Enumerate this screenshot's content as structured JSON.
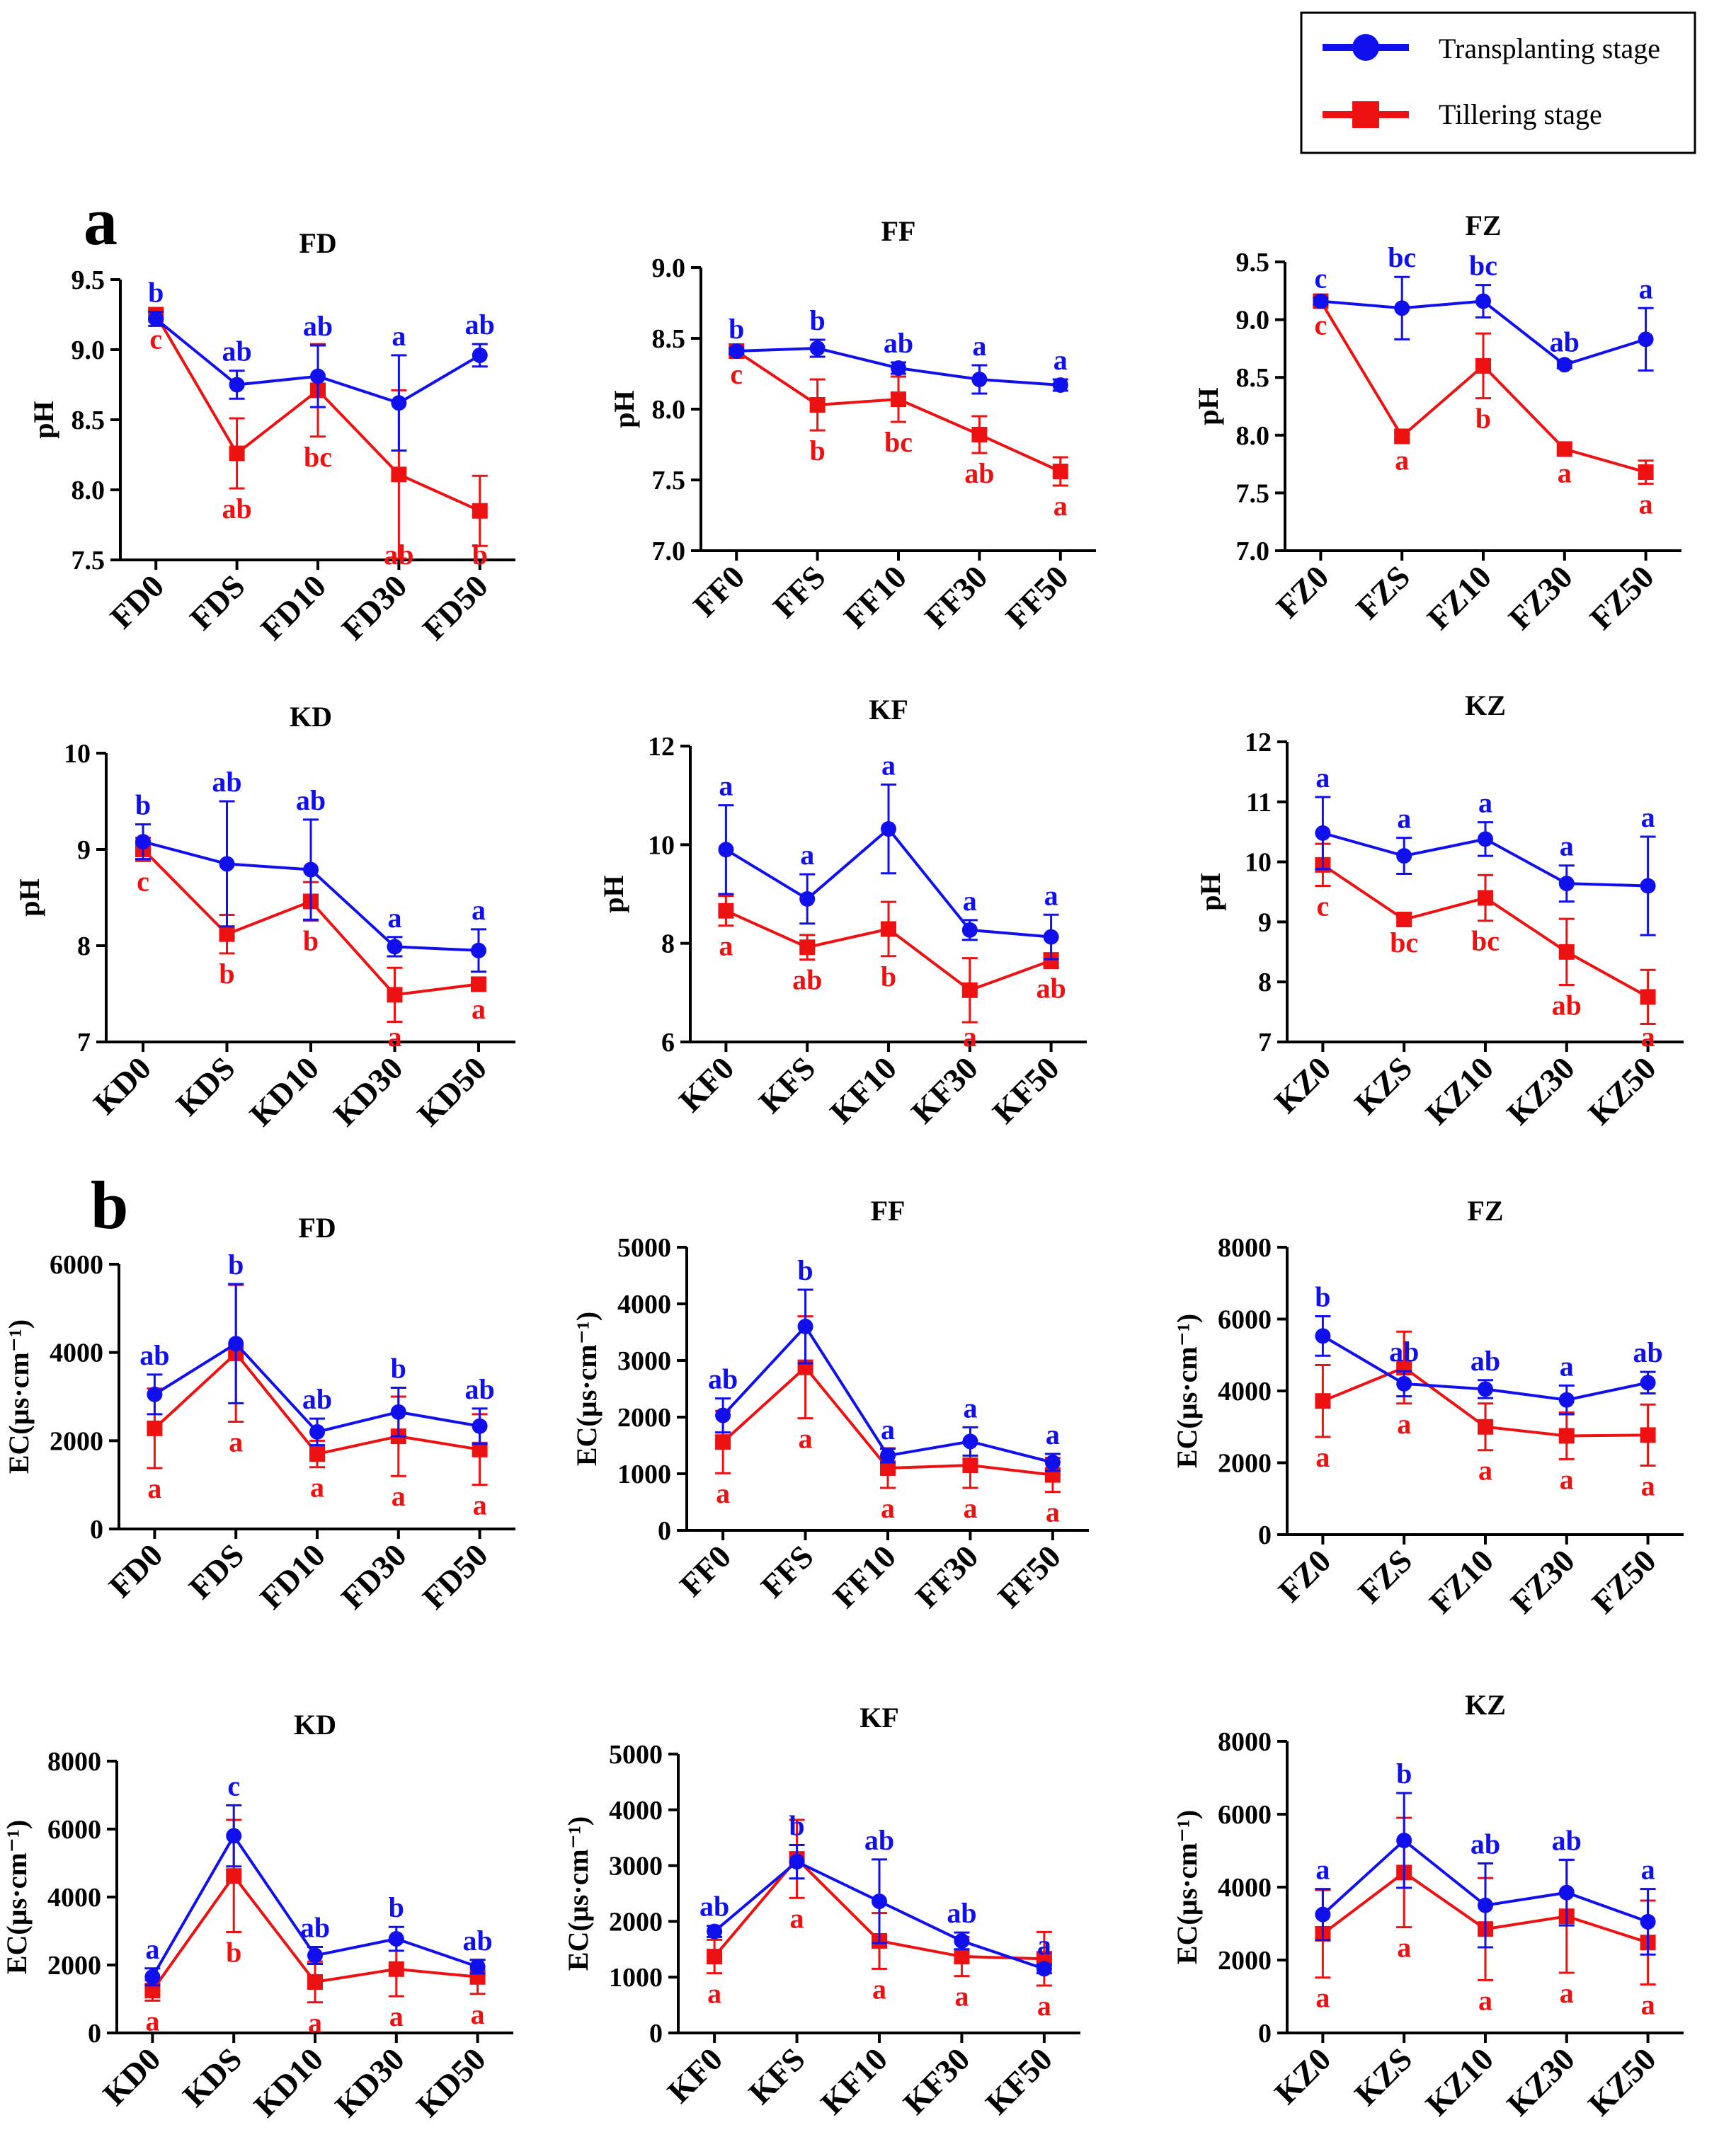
{
  "colors": {
    "transplanting": "#1010ee",
    "tillering": "#ee1111",
    "axis": "#000000"
  },
  "legend": {
    "items": [
      {
        "label": "Transplanting stage",
        "series": "transplanting",
        "marker": "circle"
      },
      {
        "label": "Tillering stage",
        "series": "tillering",
        "marker": "square"
      }
    ]
  },
  "panels": [
    {
      "id": "a",
      "label": "a"
    },
    {
      "id": "b",
      "label": "b"
    }
  ],
  "chart_data": [
    {
      "type": "line",
      "panel": "a",
      "title": "FD",
      "ylabel": "pH",
      "categories": [
        "FD0",
        "FDS",
        "FD10",
        "FD30",
        "FD50"
      ],
      "ylim": [
        7.5,
        9.5
      ],
      "yticks": [
        "7.5",
        "8.0",
        "8.5",
        "9.0",
        "9.5"
      ],
      "series": [
        {
          "name": "Transplanting stage",
          "values": [
            9.22,
            8.75,
            8.81,
            8.62,
            8.96
          ],
          "errors": [
            0.05,
            0.1,
            0.22,
            0.34,
            0.08
          ],
          "letters": [
            "b",
            "ab",
            "ab",
            "a",
            "ab"
          ]
        },
        {
          "name": "Tillering stage",
          "values": [
            9.25,
            8.26,
            8.71,
            8.11,
            7.85
          ],
          "errors": [
            0.03,
            0.25,
            0.33,
            0.6,
            0.25
          ],
          "letters": [
            "c",
            "ab",
            "bc",
            "ab",
            "b"
          ]
        }
      ]
    },
    {
      "type": "line",
      "panel": "a",
      "title": "FF",
      "ylabel": "pH",
      "categories": [
        "FF0",
        "FFS",
        "FF10",
        "FF30",
        "FF50"
      ],
      "ylim": [
        7.0,
        9.0
      ],
      "yticks": [
        "7.0",
        "7.5",
        "8.0",
        "8.5",
        "9.0"
      ],
      "series": [
        {
          "name": "Transplanting stage",
          "values": [
            8.41,
            8.43,
            8.29,
            8.21,
            8.17
          ],
          "errors": [
            0.02,
            0.06,
            0.04,
            0.1,
            0.04
          ],
          "letters": [
            "b",
            "b",
            "ab",
            "a",
            "a"
          ]
        },
        {
          "name": "Tillering stage",
          "values": [
            8.41,
            8.03,
            8.07,
            7.82,
            7.56
          ],
          "errors": [
            0.02,
            0.18,
            0.16,
            0.13,
            0.1
          ],
          "letters": [
            "c",
            "b",
            "bc",
            "ab",
            "a"
          ]
        }
      ]
    },
    {
      "type": "line",
      "panel": "a",
      "title": "FZ",
      "ylabel": "pH",
      "categories": [
        "FZ0",
        "FZS",
        "FZ10",
        "FZ30",
        "FZ50"
      ],
      "ylim": [
        7.0,
        9.5
      ],
      "yticks": [
        "7.0",
        "7.5",
        "8.0",
        "8.5",
        "9.0",
        "9.5"
      ],
      "series": [
        {
          "name": "Transplanting stage",
          "values": [
            9.16,
            9.1,
            9.16,
            8.61,
            8.83
          ],
          "errors": [
            0.03,
            0.27,
            0.14,
            0.03,
            0.27
          ],
          "letters": [
            "c",
            "bc",
            "bc",
            "ab",
            "a"
          ]
        },
        {
          "name": "Tillering stage",
          "values": [
            9.16,
            7.99,
            8.6,
            7.88,
            7.68
          ],
          "errors": [
            0.03,
            0.03,
            0.28,
            0.03,
            0.1
          ],
          "letters": [
            "c",
            "a",
            "b",
            "a",
            "a"
          ]
        }
      ]
    },
    {
      "type": "line",
      "panel": "a",
      "title": "KD",
      "ylabel": "pH",
      "categories": [
        "KD0",
        "KDS",
        "KD10",
        "KD30",
        "KD50"
      ],
      "ylim": [
        7,
        10
      ],
      "yticks": [
        "7",
        "8",
        "9",
        "10"
      ],
      "series": [
        {
          "name": "Transplanting stage",
          "values": [
            9.08,
            8.85,
            8.79,
            7.99,
            7.95
          ],
          "errors": [
            0.18,
            0.65,
            0.52,
            0.1,
            0.22
          ],
          "letters": [
            "b",
            "ab",
            "ab",
            "a",
            "a"
          ]
        },
        {
          "name": "Tillering stage",
          "values": [
            9.0,
            8.12,
            8.46,
            7.49,
            7.6
          ],
          "errors": [
            0.12,
            0.2,
            0.2,
            0.28,
            0.05
          ],
          "letters": [
            "c",
            "b",
            "b",
            "a",
            "a"
          ]
        }
      ]
    },
    {
      "type": "line",
      "panel": "a",
      "title": "KF",
      "ylabel": "pH",
      "categories": [
        "KF0",
        "KFS",
        "KF10",
        "KF30",
        "KF50"
      ],
      "ylim": [
        6,
        12
      ],
      "yticks": [
        "6",
        "8",
        "10",
        "12"
      ],
      "series": [
        {
          "name": "Transplanting stage",
          "values": [
            9.9,
            8.9,
            10.32,
            8.27,
            8.13
          ],
          "errors": [
            0.9,
            0.5,
            0.9,
            0.2,
            0.45
          ],
          "letters": [
            "a",
            "a",
            "a",
            "a",
            "a"
          ]
        },
        {
          "name": "Tillering stage",
          "values": [
            8.66,
            7.92,
            8.29,
            7.05,
            7.65
          ],
          "errors": [
            0.3,
            0.25,
            0.55,
            0.65,
            0.15
          ],
          "letters": [
            "a",
            "ab",
            "b",
            "a",
            "ab"
          ]
        }
      ]
    },
    {
      "type": "line",
      "panel": "a",
      "title": "KZ",
      "ylabel": "pH",
      "categories": [
        "KZ0",
        "KZS",
        "KZ10",
        "KZ30",
        "KZ50"
      ],
      "ylim": [
        7,
        12
      ],
      "yticks": [
        "7",
        "8",
        "9",
        "10",
        "11",
        "12"
      ],
      "series": [
        {
          "name": "Transplanting stage",
          "values": [
            10.48,
            10.1,
            10.38,
            9.64,
            9.6
          ],
          "errors": [
            0.6,
            0.3,
            0.28,
            0.3,
            0.82
          ],
          "letters": [
            "a",
            "a",
            "a",
            "a",
            "a"
          ]
        },
        {
          "name": "Tillering stage",
          "values": [
            9.95,
            9.04,
            9.4,
            8.5,
            7.75
          ],
          "errors": [
            0.35,
            0.05,
            0.38,
            0.55,
            0.45
          ],
          "letters": [
            "c",
            "bc",
            "bc",
            "ab",
            "a"
          ]
        }
      ]
    },
    {
      "type": "line",
      "panel": "b",
      "title": "FD",
      "ylabel": "EC(µs·cm⁻¹)",
      "categories": [
        "FD0",
        "FDS",
        "FD10",
        "FD30",
        "FD50"
      ],
      "ylim": [
        0,
        6000
      ],
      "yticks": [
        "0",
        "2000",
        "4000",
        "6000"
      ],
      "series": [
        {
          "name": "Transplanting stage",
          "values": [
            3050,
            4200,
            2200,
            2650,
            2330
          ],
          "errors": [
            450,
            1350,
            300,
            550,
            400
          ],
          "letters": [
            "ab",
            "b",
            "ab",
            "b",
            "ab"
          ]
        },
        {
          "name": "Tillering stage",
          "values": [
            2280,
            3980,
            1700,
            2100,
            1800
          ],
          "errors": [
            900,
            1550,
            300,
            900,
            800
          ],
          "letters": [
            "a",
            "a",
            "a",
            "a",
            "a"
          ]
        }
      ]
    },
    {
      "type": "line",
      "panel": "b",
      "title": "FF",
      "ylabel": "EC(µs·cm⁻¹)",
      "categories": [
        "FF0",
        "FFS",
        "FF10",
        "FF30",
        "FF50"
      ],
      "ylim": [
        0,
        5000
      ],
      "yticks": [
        "0",
        "1000",
        "2000",
        "3000",
        "4000",
        "5000"
      ],
      "series": [
        {
          "name": "Transplanting stage",
          "values": [
            2030,
            3600,
            1320,
            1570,
            1200
          ],
          "errors": [
            300,
            650,
            120,
            250,
            150
          ],
          "letters": [
            "ab",
            "b",
            "a",
            "a",
            "a"
          ]
        },
        {
          "name": "Tillering stage",
          "values": [
            1560,
            2880,
            1100,
            1150,
            980
          ],
          "errors": [
            550,
            900,
            350,
            400,
            300
          ],
          "letters": [
            "a",
            "a",
            "a",
            "a",
            "a"
          ]
        }
      ]
    },
    {
      "type": "line",
      "panel": "b",
      "title": "FZ",
      "ylabel": "EC(µs·cm⁻¹)",
      "categories": [
        "FZ0",
        "FZS",
        "FZ10",
        "FZ30",
        "FZ50"
      ],
      "ylim": [
        0,
        8000
      ],
      "yticks": [
        "0",
        "2000",
        "4000",
        "6000",
        "8000"
      ],
      "series": [
        {
          "name": "Transplanting stage",
          "values": [
            5530,
            4200,
            4050,
            3750,
            4230
          ],
          "errors": [
            550,
            350,
            250,
            400,
            300
          ],
          "letters": [
            "b",
            "ab",
            "ab",
            "a",
            "ab"
          ]
        },
        {
          "name": "Tillering stage",
          "values": [
            3720,
            4650,
            3000,
            2750,
            2770
          ],
          "errors": [
            1000,
            1000,
            650,
            650,
            850
          ],
          "letters": [
            "a",
            "a",
            "a",
            "a",
            "a"
          ]
        }
      ]
    },
    {
      "type": "line",
      "panel": "b",
      "title": "KD",
      "ylabel": "EC(µs·cm⁻¹)",
      "categories": [
        "KD0",
        "KDS",
        "KD10",
        "KD30",
        "KD50"
      ],
      "ylim": [
        0,
        8000
      ],
      "yticks": [
        "0",
        "2000",
        "4000",
        "6000",
        "8000"
      ],
      "series": [
        {
          "name": "Transplanting stage",
          "values": [
            1650,
            5800,
            2280,
            2770,
            1950
          ],
          "errors": [
            250,
            900,
            250,
            350,
            200
          ],
          "letters": [
            "a",
            "c",
            "ab",
            "b",
            "ab"
          ]
        },
        {
          "name": "Tillering stage",
          "values": [
            1250,
            4620,
            1500,
            1880,
            1650
          ],
          "errors": [
            300,
            1650,
            600,
            800,
            500
          ],
          "letters": [
            "a",
            "b",
            "a",
            "a",
            "a"
          ]
        }
      ]
    },
    {
      "type": "line",
      "panel": "b",
      "title": "KF",
      "ylabel": "EC(µs·cm⁻¹)",
      "categories": [
        "KF0",
        "KFS",
        "KF10",
        "KF30",
        "KF50"
      ],
      "ylim": [
        0,
        5000
      ],
      "yticks": [
        "0",
        "1000",
        "2000",
        "3000",
        "4000",
        "5000"
      ],
      "series": [
        {
          "name": "Transplanting stage",
          "values": [
            1820,
            3070,
            2360,
            1650,
            1150
          ],
          "errors": [
            100,
            300,
            750,
            150,
            80
          ],
          "letters": [
            "ab",
            "b",
            "ab",
            "ab",
            "a"
          ]
        },
        {
          "name": "Tillering stage",
          "values": [
            1370,
            3120,
            1650,
            1370,
            1330
          ],
          "errors": [
            300,
            700,
            500,
            350,
            480
          ],
          "letters": [
            "a",
            "a",
            "a",
            "a",
            "a"
          ]
        }
      ]
    },
    {
      "type": "line",
      "panel": "b",
      "title": "KZ",
      "ylabel": "EC(µs·cm⁻¹)",
      "categories": [
        "KZ0",
        "KZS",
        "KZ10",
        "KZ30",
        "KZ50"
      ],
      "ylim": [
        0,
        8000
      ],
      "yticks": [
        "0",
        "2000",
        "4000",
        "6000",
        "8000"
      ],
      "series": [
        {
          "name": "Transplanting stage",
          "values": [
            3250,
            5280,
            3500,
            3850,
            3050
          ],
          "errors": [
            700,
            1300,
            1150,
            900,
            900
          ],
          "letters": [
            "a",
            "b",
            "ab",
            "ab",
            "a"
          ]
        },
        {
          "name": "Tillering stage",
          "values": [
            2720,
            4400,
            2850,
            3200,
            2480
          ],
          "errors": [
            1200,
            1500,
            1400,
            1550,
            1150
          ],
          "letters": [
            "a",
            "a",
            "a",
            "a",
            "a"
          ]
        }
      ]
    }
  ]
}
